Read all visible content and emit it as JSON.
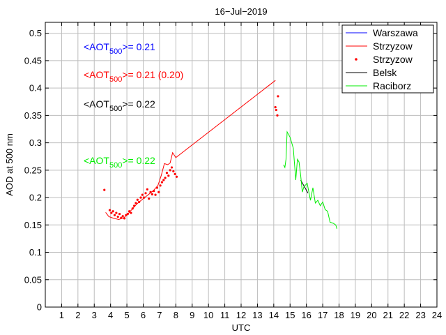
{
  "chart_data": {
    "type": "line",
    "title": "16−Jul−2019",
    "xlabel": "UTC",
    "ylabel": "AOD at 500 nm",
    "xlim": [
      0,
      24
    ],
    "ylim": [
      0,
      0.52
    ],
    "xticks": [
      "1",
      "2",
      "3",
      "4",
      "5",
      "6",
      "7",
      "8",
      "9",
      "10",
      "11",
      "12",
      "13",
      "14",
      "15",
      "16",
      "17",
      "18",
      "19",
      "20",
      "21",
      "22",
      "23",
      "24"
    ],
    "yticks": [
      "0",
      "0.05",
      "0.1",
      "0.15",
      "0.2",
      "0.25",
      "0.3",
      "0.35",
      "0.4",
      "0.45",
      "0.5"
    ],
    "grid": true,
    "legend_position": "top-right",
    "series": [
      {
        "name": "Warszawa",
        "style": "line",
        "color": "#0000ff",
        "x": [],
        "y": []
      },
      {
        "name": "Strzyzow",
        "style": "line",
        "color": "#ff0000",
        "x": [
          3.7,
          3.9,
          4.2,
          4.5,
          4.8,
          5.0,
          5.3,
          5.6,
          6.0,
          6.3,
          6.6,
          6.9,
          7.1,
          7.3,
          7.5,
          7.65,
          7.8,
          8.0,
          14.1
        ],
        "y": [
          0.173,
          0.165,
          0.162,
          0.16,
          0.163,
          0.168,
          0.178,
          0.188,
          0.198,
          0.205,
          0.212,
          0.222,
          0.24,
          0.262,
          0.26,
          0.263,
          0.282,
          0.273,
          0.414
        ]
      },
      {
        "name": "Strzyzow",
        "style": "points",
        "color": "#ff0000",
        "x": [
          3.62,
          3.95,
          4.05,
          4.15,
          4.25,
          4.35,
          4.45,
          4.55,
          4.65,
          4.75,
          4.85,
          4.95,
          5.05,
          5.15,
          5.25,
          5.35,
          5.45,
          5.55,
          5.65,
          5.75,
          5.85,
          5.95,
          6.05,
          6.15,
          6.25,
          6.35,
          6.45,
          6.55,
          6.65,
          6.75,
          6.85,
          6.95,
          7.05,
          7.15,
          7.25,
          7.35,
          7.45,
          7.55,
          7.65,
          7.75,
          7.85,
          7.95,
          8.05,
          14.1,
          14.15,
          14.22,
          14.26
        ],
        "y": [
          0.214,
          0.177,
          0.172,
          0.175,
          0.168,
          0.172,
          0.165,
          0.17,
          0.163,
          0.166,
          0.162,
          0.168,
          0.17,
          0.175,
          0.172,
          0.18,
          0.185,
          0.19,
          0.196,
          0.192,
          0.2,
          0.205,
          0.2,
          0.208,
          0.215,
          0.198,
          0.21,
          0.206,
          0.212,
          0.205,
          0.218,
          0.21,
          0.222,
          0.228,
          0.232,
          0.236,
          0.245,
          0.24,
          0.25,
          0.255,
          0.248,
          0.243,
          0.238,
          0.365,
          0.36,
          0.35,
          0.385
        ]
      },
      {
        "name": "Belsk",
        "style": "line",
        "color": "#000000",
        "x": [
          15.65,
          16.1
        ],
        "y": [
          0.232,
          0.208
        ]
      },
      {
        "name": "Raciborz",
        "style": "line",
        "color": "#00ee00",
        "x": [
          14.6,
          14.68,
          14.75,
          14.82,
          15.0,
          15.2,
          15.35,
          15.45,
          15.55,
          15.65,
          15.75,
          15.85,
          16.05,
          16.25,
          16.4,
          16.55,
          16.7,
          16.85,
          17.0,
          17.15,
          17.3,
          17.45,
          17.65,
          17.8,
          17.87
        ],
        "y": [
          0.26,
          0.255,
          0.27,
          0.32,
          0.31,
          0.29,
          0.232,
          0.27,
          0.265,
          0.24,
          0.21,
          0.22,
          0.226,
          0.195,
          0.218,
          0.19,
          0.195,
          0.185,
          0.192,
          0.178,
          0.175,
          0.155,
          0.153,
          0.15,
          0.143
        ]
      }
    ],
    "legend": [
      "Warszawa",
      "Strzyzow",
      "Strzyzow",
      "Belsk",
      "Raciborz"
    ],
    "annotations": [
      {
        "prefix": "<AOT",
        "sub": "500",
        "suffix": ">= 0.21",
        "color": "#0000ff"
      },
      {
        "prefix": "<AOT",
        "sub": "500",
        "suffix": ">= 0.21 (0.20)",
        "color": "#ff0000"
      },
      {
        "prefix": "<AOT",
        "sub": "500",
        "suffix": ">= 0.22",
        "color": "#000000"
      },
      {
        "prefix": "<AOT",
        "sub": "500",
        "suffix": ">= 0.22",
        "color": "#00ee00"
      }
    ]
  }
}
